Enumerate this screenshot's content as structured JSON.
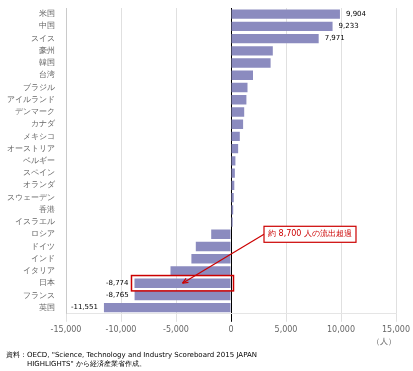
{
  "chart_data": {
    "type": "bar",
    "orientation": "horizontal",
    "categories": [
      "米国",
      "中国",
      "スイス",
      "豪州",
      "韓国",
      "台湾",
      "ブラジル",
      "アイルランド",
      "デンマーク",
      "カナダ",
      "メキシコ",
      "オーストリア",
      "ベルギー",
      "スペイン",
      "オランダ",
      "スウェーデン",
      "香港",
      "イスラエル",
      "ロシア",
      "ドイツ",
      "インド",
      "イタリア",
      "日本",
      "フランス",
      "英国"
    ],
    "values": [
      9904,
      9233,
      7971,
      3800,
      3600,
      2000,
      1500,
      1400,
      1200,
      1100,
      800,
      650,
      400,
      350,
      300,
      250,
      200,
      150,
      -1800,
      -3200,
      -3600,
      -5500,
      -8774,
      -8765,
      -11551
    ],
    "value_labels": [
      "9,904",
      "9,233",
      "7,971",
      null,
      null,
      null,
      null,
      null,
      null,
      null,
      null,
      null,
      null,
      null,
      null,
      null,
      null,
      null,
      null,
      null,
      null,
      null,
      "-8,774",
      "-8,765",
      "-11,551"
    ],
    "data_labels": true,
    "color": "#8b8bbf",
    "xlabel": "（人）",
    "xlim": [
      -15000,
      15000
    ],
    "xticks": [
      {
        "value": -15000,
        "label": "-15,000"
      },
      {
        "value": -10000,
        "label": "-10,000"
      },
      {
        "value": -5000,
        "label": "-5,000"
      },
      0,
      {
        "value": 5000,
        "label": "5,000"
      },
      {
        "value": 10000,
        "label": "10,000"
      },
      {
        "value": 15000,
        "label": "15,000"
      }
    ],
    "grid": true,
    "annotations": [
      {
        "text": "約 8,700 人の流出超過",
        "category": "日本",
        "color": "#cc0000"
      }
    ],
    "source": [
      "資料：OECD, \"Science, Technology and Industry Scoreboard 2015 JAPAN",
      "HIGHLIGHTS\" から経済産業省作成。"
    ]
  }
}
